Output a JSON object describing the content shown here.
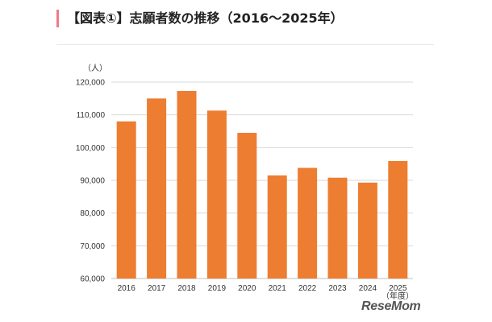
{
  "page_title": "【図表①】志願者数の推移（2016〜2025年）",
  "logo_text": "ReseMom",
  "chart_data": {
    "type": "bar",
    "title": "",
    "categories": [
      "2016",
      "2017",
      "2018",
      "2019",
      "2020",
      "2021",
      "2022",
      "2023",
      "2024",
      "2025"
    ],
    "values": [
      108000,
      115000,
      117300,
      111300,
      104500,
      91500,
      93800,
      90800,
      89300,
      95900
    ],
    "y_unit": "（人）",
    "x_unit": "（年度）",
    "ylim": [
      60000,
      120000
    ],
    "y_ticks": [
      "60,000",
      "70,000",
      "80,000",
      "90,000",
      "100,000",
      "110,000",
      "120,000"
    ],
    "bar_color": "#ed7d31",
    "grid": true
  }
}
